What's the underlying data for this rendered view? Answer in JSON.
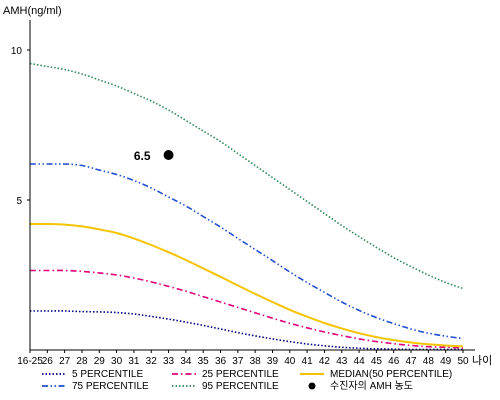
{
  "chart_data": {
    "type": "line",
    "ylabel": "AMH(ng/ml)",
    "xlabel": "나이",
    "categories": [
      "16-25",
      "26",
      "27",
      "28",
      "29",
      "30",
      "31",
      "32",
      "33",
      "34",
      "35",
      "36",
      "37",
      "38",
      "39",
      "40",
      "41",
      "42",
      "43",
      "44",
      "45",
      "46",
      "47",
      "48",
      "49",
      "50"
    ],
    "yticks": [
      5,
      10
    ],
    "ylim": [
      0,
      11
    ],
    "grid": false,
    "series": [
      {
        "name": "5 PERCENTILE",
        "color": "#000080",
        "dash": "dotted",
        "values": [
          1.3,
          1.3,
          1.3,
          1.28,
          1.27,
          1.25,
          1.2,
          1.12,
          1.03,
          0.93,
          0.82,
          0.7,
          0.58,
          0.47,
          0.37,
          0.28,
          0.2,
          0.14,
          0.09,
          0.06,
          0.04,
          0.03,
          0.02,
          0.02,
          0.02,
          0.02
        ]
      },
      {
        "name": "25 PERCENTILE",
        "color": "#e0007a",
        "dash": "dashdot",
        "values": [
          2.65,
          2.65,
          2.65,
          2.62,
          2.57,
          2.5,
          2.4,
          2.27,
          2.12,
          1.96,
          1.78,
          1.6,
          1.42,
          1.24,
          1.06,
          0.89,
          0.74,
          0.6,
          0.48,
          0.37,
          0.28,
          0.21,
          0.15,
          0.11,
          0.09,
          0.07
        ]
      },
      {
        "name": "75 PERCENTILE",
        "color": "#1f4fd0",
        "dash": "dashdotdot",
        "values": [
          6.2,
          6.2,
          6.2,
          6.15,
          6.0,
          5.85,
          5.65,
          5.4,
          5.1,
          4.8,
          4.45,
          4.1,
          3.72,
          3.35,
          2.98,
          2.6,
          2.25,
          1.92,
          1.6,
          1.32,
          1.08,
          0.88,
          0.7,
          0.56,
          0.46,
          0.38
        ]
      },
      {
        "name": "95 PERCENTILE",
        "color": "#2e8b57",
        "dash": "dotted",
        "values": [
          9.55,
          9.45,
          9.35,
          9.2,
          9.0,
          8.8,
          8.55,
          8.3,
          8.0,
          7.65,
          7.3,
          6.95,
          6.55,
          6.15,
          5.75,
          5.35,
          4.95,
          4.55,
          4.15,
          3.78,
          3.42,
          3.08,
          2.78,
          2.5,
          2.25,
          2.05
        ]
      },
      {
        "name": "MEDIAN(50 PERCENTILE)",
        "color": "#f5c400",
        "dash": "solid",
        "values": [
          4.2,
          4.2,
          4.18,
          4.12,
          4.02,
          3.9,
          3.72,
          3.5,
          3.26,
          3.0,
          2.72,
          2.44,
          2.15,
          1.87,
          1.6,
          1.34,
          1.11,
          0.9,
          0.72,
          0.56,
          0.43,
          0.33,
          0.25,
          0.19,
          0.15,
          0.12
        ]
      }
    ],
    "point": {
      "name": "수진자의 AMH 농도",
      "x": "33",
      "y": 6.5,
      "label": "6.5"
    },
    "legend_position": "bottom"
  }
}
